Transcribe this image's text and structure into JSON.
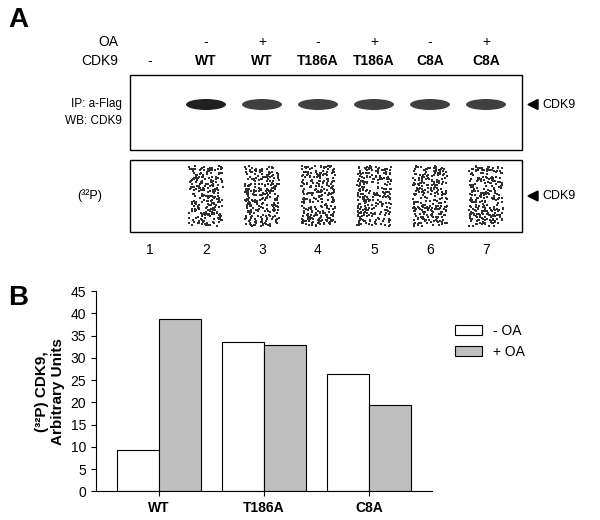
{
  "panel_a": {
    "label": "A",
    "row_labels": {
      "oa": "OA",
      "cdk9": "CDK9"
    },
    "lanes": [
      {
        "number": 1,
        "oa": null,
        "cdk9": "-",
        "band": false
      },
      {
        "number": 2,
        "oa": "-",
        "cdk9": "WT",
        "band": true
      },
      {
        "number": 3,
        "oa": "+",
        "cdk9": "WT",
        "band": true
      },
      {
        "number": 4,
        "oa": "-",
        "cdk9": "T186A",
        "band": true
      },
      {
        "number": 5,
        "oa": "+",
        "cdk9": "T186A",
        "band": true
      },
      {
        "number": 6,
        "oa": "-",
        "cdk9": "C8A",
        "band": true
      },
      {
        "number": 7,
        "oa": "+",
        "cdk9": "C8A",
        "band": true
      }
    ],
    "blots": [
      {
        "labels": [
          "IP: a-Flag",
          "WB: CDK9"
        ],
        "marker": "CDK9"
      },
      {
        "labels": [
          "(³²P)"
        ],
        "marker": "CDK9"
      }
    ]
  },
  "chart_data": {
    "type": "bar",
    "panel_label": "B",
    "y_label": "(³²P) CDK9,\nArbitrary Units",
    "categories": [
      "WT",
      "T186A",
      "C8A"
    ],
    "series": [
      {
        "name": "- OA",
        "color": "#ffffff",
        "values": [
          9.2,
          33.5,
          26.3
        ]
      },
      {
        "name": "+ OA",
        "color": "#bfbfbf",
        "values": [
          38.7,
          33.0,
          19.5
        ]
      }
    ],
    "ylim": [
      0,
      45
    ],
    "yticks": [
      0,
      5,
      10,
      15,
      20,
      25,
      30,
      35,
      40,
      45
    ],
    "legend": "right",
    "grid": false
  }
}
